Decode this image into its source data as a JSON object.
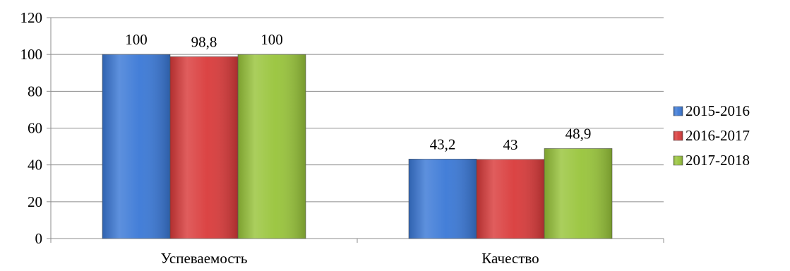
{
  "chart_data": {
    "type": "bar",
    "categories": [
      "Успеваемость",
      "Качество"
    ],
    "series": [
      {
        "name": "2015-2016",
        "values": [
          100,
          43.2
        ],
        "labels": [
          "100",
          "43,2"
        ],
        "color": "#3a78d6"
      },
      {
        "name": "2016-2017",
        "values": [
          98.8,
          43
        ],
        "labels": [
          "98,8",
          "43"
        ],
        "color": "#d93a3a"
      },
      {
        "name": "2017-2018",
        "values": [
          100,
          48.9
        ],
        "labels": [
          "100",
          "48,9"
        ],
        "color": "#98c43a"
      }
    ],
    "ylim": [
      0,
      120
    ],
    "yticks": [
      0,
      20,
      40,
      60,
      80,
      100,
      120
    ],
    "grid": true,
    "legend": "right"
  }
}
